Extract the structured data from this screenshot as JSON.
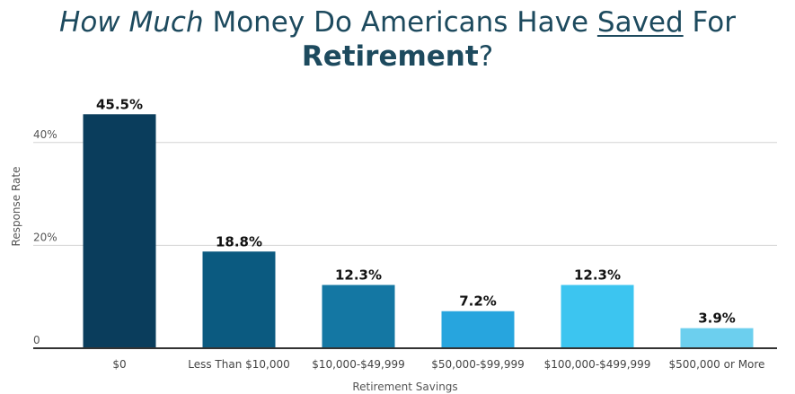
{
  "title": {
    "part1": "How Much",
    "part2": " Money Do Americans Have ",
    "part3": "Saved",
    "part4": " For",
    "part5": "Retirement",
    "part6": "?"
  },
  "chart_data": {
    "type": "bar",
    "title": "How Much Money Do Americans Have Saved For Retirement?",
    "xlabel": "Retirement Savings",
    "ylabel": "Response Rate",
    "ylim": [
      0,
      50
    ],
    "yticks": [
      {
        "value": 0,
        "label": "0"
      },
      {
        "value": 20,
        "label": "20%"
      },
      {
        "value": 40,
        "label": "40%"
      }
    ],
    "grid": true,
    "categories": [
      "$0",
      "Less Than $10,000",
      "$10,000-$49,999",
      "$50,000-$99,999",
      "$100,000-$499,999",
      "$500,000 or More"
    ],
    "values": [
      45.5,
      18.8,
      12.3,
      7.2,
      12.3,
      3.9
    ],
    "data_labels": [
      "45.5%",
      "18.8%",
      "12.3%",
      "7.2%",
      "12.3%",
      "3.9%"
    ],
    "colors": [
      "#0a3d5c",
      "#0b5a80",
      "#1477a3",
      "#27a5de",
      "#3cc5f0",
      "#6ccfee"
    ],
    "grid_color": "#d4d4d4",
    "axis_color": "#333333"
  }
}
